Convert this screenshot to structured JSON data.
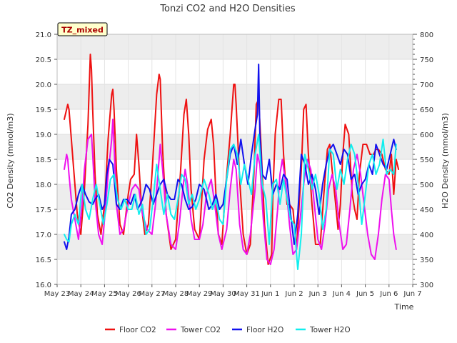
{
  "chart_data": {
    "type": "line",
    "title": "Tonzi CO2 and H2O Densities",
    "badge": "TZ_mixed",
    "xlabel": "Time",
    "ylabel_left": "CO2 Density (mmol/m3)",
    "ylabel_right": "H2O Density (mmol/m3)",
    "ylim_left": [
      16.0,
      21.0
    ],
    "ylim_right": [
      300,
      800
    ],
    "xlim": [
      0,
      15
    ],
    "x_ticks": [
      "May 23",
      "May 24",
      "May 25",
      "May 26",
      "May 27",
      "May 28",
      "May 29",
      "May 30",
      "May 31",
      "Jun 1",
      "Jun 2",
      "Jun 3",
      "Jun 4",
      "Jun 5",
      "Jun 6",
      "Jun 7"
    ],
    "y_ticks_left": [
      "16.0",
      "16.5",
      "17.0",
      "17.5",
      "18.0",
      "18.5",
      "19.0",
      "19.5",
      "20.0",
      "20.5",
      "21.0"
    ],
    "y_ticks_right": [
      "300",
      "350",
      "400",
      "450",
      "500",
      "550",
      "600",
      "650",
      "700",
      "750",
      "800"
    ],
    "bands": true,
    "legend_position": "bottom",
    "series": [
      {
        "name": "Floor CO2",
        "axis": "left",
        "color": "#ee1111",
        "x": [
          0.3,
          0.45,
          0.5,
          0.55,
          0.7,
          0.85,
          1.0,
          1.15,
          1.3,
          1.4,
          1.45,
          1.5,
          1.6,
          1.7,
          1.85,
          2.0,
          2.15,
          2.3,
          2.35,
          2.4,
          2.5,
          2.65,
          2.8,
          3.0,
          3.1,
          3.25,
          3.3,
          3.35,
          3.45,
          3.55,
          3.7,
          3.85,
          4.0,
          4.2,
          4.3,
          4.35,
          4.45,
          4.6,
          4.8,
          5.0,
          5.2,
          5.35,
          5.45,
          5.55,
          5.65,
          5.8,
          6.0,
          6.2,
          6.35,
          6.5,
          6.6,
          6.7,
          6.8,
          6.95,
          7.1,
          7.3,
          7.45,
          7.5,
          7.55,
          7.7,
          7.85,
          8.0,
          8.15,
          8.3,
          8.4,
          8.5,
          8.6,
          8.75,
          8.9,
          9.05,
          9.1,
          9.2,
          9.35,
          9.45,
          9.55,
          9.7,
          9.8,
          9.95,
          10.1,
          10.2,
          10.3,
          10.4,
          10.5,
          10.6,
          10.75,
          10.9,
          11.1,
          11.25,
          11.4,
          11.5,
          11.6,
          11.75,
          11.85,
          11.95,
          12.05,
          12.15,
          12.3,
          12.45,
          12.55,
          12.65,
          12.75,
          12.9,
          13.05,
          13.2,
          13.35,
          13.45,
          13.55,
          13.7,
          13.85,
          14.0,
          14.1,
          14.2,
          14.3,
          14.4
        ],
        "y": [
          19.3,
          19.6,
          19.5,
          19.2,
          18.3,
          17.4,
          17.0,
          17.9,
          19.2,
          20.6,
          20.3,
          19.5,
          18.2,
          17.4,
          17.0,
          17.6,
          18.9,
          19.8,
          19.9,
          19.5,
          18.3,
          17.2,
          17.0,
          17.8,
          18.1,
          18.2,
          18.6,
          19.0,
          18.4,
          17.6,
          17.0,
          17.2,
          18.2,
          19.8,
          20.2,
          20.1,
          18.7,
          17.4,
          16.7,
          16.9,
          18.2,
          19.4,
          19.7,
          19.0,
          17.9,
          17.1,
          16.9,
          18.5,
          19.1,
          19.3,
          18.8,
          17.8,
          17.0,
          16.8,
          17.9,
          19.0,
          20.0,
          20.0,
          19.6,
          18.1,
          17.0,
          16.6,
          16.8,
          18.2,
          19.6,
          19.7,
          18.8,
          17.2,
          16.4,
          16.6,
          17.8,
          19.0,
          19.7,
          19.7,
          18.6,
          17.6,
          17.6,
          17.5,
          16.7,
          17.5,
          18.3,
          19.5,
          19.6,
          18.6,
          17.6,
          16.8,
          16.8,
          17.8,
          18.7,
          18.8,
          18.3,
          17.6,
          17.1,
          17.6,
          18.6,
          19.2,
          19.0,
          17.8,
          17.5,
          17.3,
          18.2,
          18.8,
          18.8,
          18.6,
          18.6,
          18.7,
          18.7,
          18.6,
          18.3,
          18.2,
          18.6,
          17.8,
          18.5,
          18.3
        ]
      },
      {
        "name": "Tower CO2",
        "axis": "left",
        "color": "#ee11ee",
        "x": [
          0.3,
          0.4,
          0.45,
          0.5,
          0.6,
          0.75,
          0.9,
          1.05,
          1.15,
          1.3,
          1.45,
          1.5,
          1.6,
          1.75,
          1.9,
          2.0,
          2.15,
          2.3,
          2.35,
          2.4,
          2.5,
          2.65,
          2.8,
          3.0,
          3.15,
          3.3,
          3.45,
          3.6,
          3.8,
          4.0,
          4.15,
          4.3,
          4.35,
          4.45,
          4.6,
          4.8,
          5.0,
          5.15,
          5.3,
          5.4,
          5.5,
          5.65,
          5.8,
          6.0,
          6.15,
          6.3,
          6.5,
          6.65,
          6.8,
          6.95,
          7.15,
          7.3,
          7.45,
          7.55,
          7.7,
          7.85,
          8.0,
          8.15,
          8.35,
          8.45,
          8.55,
          8.7,
          8.85,
          9.0,
          9.15,
          9.3,
          9.4,
          9.5,
          9.65,
          9.8,
          9.95,
          10.1,
          10.25,
          10.4,
          10.55,
          10.7,
          10.85,
          11.0,
          11.15,
          11.3,
          11.45,
          11.6,
          11.75,
          11.9,
          12.05,
          12.2,
          12.35,
          12.5,
          12.65,
          12.8,
          12.95,
          13.1,
          13.25,
          13.4,
          13.55,
          13.7,
          13.85,
          14.0,
          14.1,
          14.2,
          14.3
        ],
        "y": [
          18.3,
          18.6,
          18.5,
          18.2,
          17.7,
          17.3,
          16.9,
          17.6,
          18.3,
          18.9,
          19.0,
          18.6,
          17.7,
          17.0,
          16.8,
          17.3,
          18.2,
          18.9,
          19.3,
          18.8,
          17.6,
          17.0,
          17.1,
          17.6,
          17.9,
          18.0,
          17.9,
          17.4,
          17.1,
          17.0,
          17.6,
          18.5,
          18.8,
          18.3,
          17.4,
          16.8,
          16.7,
          17.2,
          17.9,
          18.3,
          18.0,
          17.3,
          16.9,
          16.9,
          17.2,
          17.8,
          18.1,
          17.6,
          17.0,
          16.7,
          17.1,
          17.9,
          18.5,
          18.3,
          17.2,
          16.7,
          16.6,
          17.0,
          17.9,
          18.6,
          18.4,
          17.3,
          16.5,
          16.4,
          16.7,
          17.5,
          18.2,
          18.5,
          18.0,
          17.2,
          16.6,
          16.7,
          17.3,
          18.0,
          18.5,
          18.3,
          17.6,
          16.9,
          16.7,
          17.2,
          17.9,
          18.2,
          17.9,
          17.2,
          16.7,
          16.8,
          17.5,
          18.3,
          18.6,
          18.2,
          17.6,
          17.0,
          16.6,
          16.5,
          17.0,
          17.7,
          18.2,
          18.1,
          17.5,
          17.0,
          16.7
        ]
      },
      {
        "name": "Floor H2O",
        "axis": "right",
        "color": "#1111ee",
        "x": [
          0.3,
          0.4,
          0.5,
          0.6,
          0.75,
          0.9,
          1.05,
          1.2,
          1.35,
          1.5,
          1.6,
          1.75,
          1.9,
          2.0,
          2.1,
          2.2,
          2.35,
          2.5,
          2.65,
          2.8,
          2.95,
          3.1,
          3.25,
          3.4,
          3.6,
          3.75,
          3.9,
          4.05,
          4.2,
          4.35,
          4.5,
          4.65,
          4.8,
          4.95,
          5.1,
          5.25,
          5.4,
          5.55,
          5.7,
          5.85,
          6.0,
          6.2,
          6.4,
          6.55,
          6.7,
          6.85,
          7.0,
          7.15,
          7.3,
          7.45,
          7.6,
          7.75,
          7.9,
          8.05,
          8.2,
          8.35,
          8.45,
          8.5,
          8.55,
          8.65,
          8.8,
          8.95,
          9.1,
          9.25,
          9.4,
          9.55,
          9.7,
          9.85,
          10.0,
          10.15,
          10.3,
          10.45,
          10.6,
          10.75,
          10.9,
          11.05,
          11.2,
          11.35,
          11.5,
          11.65,
          11.8,
          11.95,
          12.1,
          12.25,
          12.4,
          12.55,
          12.7,
          12.85,
          13.0,
          13.15,
          13.3,
          13.45,
          13.6,
          13.75,
          13.9,
          14.05,
          14.2,
          14.3
        ],
        "y": [
          385,
          370,
          395,
          440,
          450,
          480,
          500,
          480,
          465,
          460,
          470,
          480,
          450,
          460,
          520,
          550,
          540,
          460,
          450,
          470,
          470,
          460,
          480,
          450,
          470,
          500,
          490,
          460,
          480,
          500,
          510,
          480,
          470,
          470,
          510,
          500,
          470,
          450,
          455,
          470,
          500,
          490,
          450,
          460,
          480,
          450,
          460,
          510,
          560,
          580,
          540,
          590,
          540,
          500,
          560,
          610,
          640,
          740,
          600,
          520,
          510,
          550,
          480,
          500,
          490,
          520,
          510,
          440,
          380,
          440,
          560,
          540,
          500,
          520,
          490,
          440,
          500,
          540,
          570,
          580,
          560,
          540,
          570,
          560,
          510,
          520,
          480,
          500,
          510,
          540,
          520,
          580,
          560,
          540,
          530,
          560,
          590,
          570
        ]
      },
      {
        "name": "Tower H2O",
        "axis": "right",
        "color": "#11eeee",
        "x": [
          0.3,
          0.4,
          0.5,
          0.6,
          0.75,
          0.9,
          1.05,
          1.2,
          1.35,
          1.5,
          1.65,
          1.8,
          1.95,
          2.1,
          2.25,
          2.4,
          2.55,
          2.7,
          2.85,
          3.0,
          3.15,
          3.3,
          3.45,
          3.6,
          3.75,
          3.9,
          4.05,
          4.2,
          4.35,
          4.5,
          4.65,
          4.8,
          4.95,
          5.1,
          5.25,
          5.4,
          5.55,
          5.7,
          5.85,
          6.0,
          6.2,
          6.4,
          6.55,
          6.7,
          6.85,
          7.0,
          7.15,
          7.3,
          7.45,
          7.6,
          7.75,
          7.9,
          8.05,
          8.2,
          8.35,
          8.5,
          8.65,
          8.8,
          8.95,
          9.1,
          9.25,
          9.4,
          9.55,
          9.7,
          9.85,
          10.0,
          10.15,
          10.3,
          10.45,
          10.6,
          10.75,
          10.9,
          11.05,
          11.2,
          11.35,
          11.5,
          11.65,
          11.8,
          11.95,
          12.1,
          12.25,
          12.4,
          12.55,
          12.7,
          12.85,
          13.0,
          13.15,
          13.3,
          13.45,
          13.6,
          13.75,
          13.9,
          14.05,
          14.2,
          14.3
        ],
        "y": [
          400,
          390,
          385,
          420,
          440,
          420,
          500,
          450,
          430,
          470,
          500,
          460,
          420,
          460,
          510,
          520,
          470,
          450,
          470,
          450,
          450,
          480,
          440,
          460,
          400,
          410,
          470,
          540,
          490,
          440,
          480,
          440,
          430,
          470,
          520,
          510,
          460,
          480,
          450,
          470,
          510,
          480,
          450,
          470,
          430,
          420,
          510,
          570,
          580,
          560,
          500,
          540,
          510,
          480,
          560,
          600,
          500,
          470,
          380,
          500,
          510,
          460,
          510,
          470,
          430,
          420,
          330,
          400,
          560,
          530,
          490,
          520,
          480,
          410,
          450,
          570,
          560,
          490,
          530,
          500,
          550,
          580,
          560,
          500,
          420,
          480,
          540,
          560,
          520,
          540,
          590,
          520,
          530,
          520,
          580
        ]
      }
    ]
  }
}
